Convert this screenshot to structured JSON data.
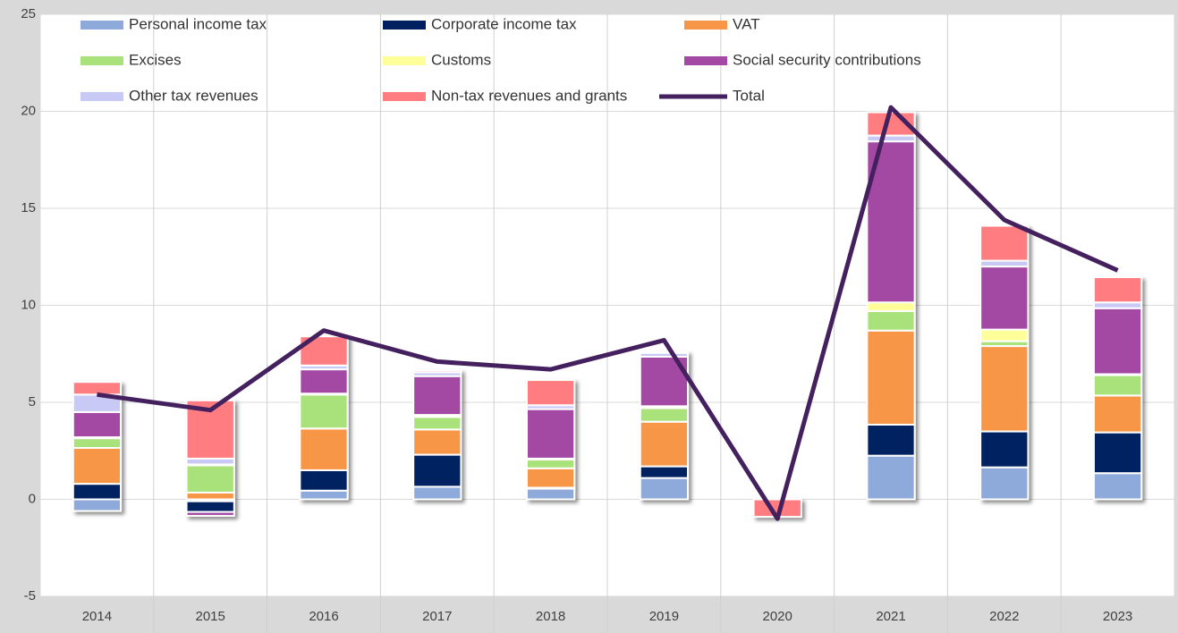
{
  "chart_data": {
    "type": "stacked_bar_line",
    "categories": [
      "2014",
      "2015",
      "2016",
      "2017",
      "2018",
      "2019",
      "2020",
      "2021",
      "2022",
      "2023"
    ],
    "series": [
      {
        "name": "Personal income tax",
        "color": "#8eaadb",
        "values": [
          -0.6,
          -0.1,
          0.45,
          0.65,
          0.55,
          1.1,
          0,
          2.25,
          1.65,
          1.35
        ]
      },
      {
        "name": "Corporate income tax",
        "color": "#002060",
        "values": [
          0.8,
          -0.55,
          1.05,
          1.65,
          0.05,
          0.6,
          0,
          1.6,
          1.85,
          2.1
        ]
      },
      {
        "name": "VAT",
        "color": "#f79646",
        "values": [
          1.85,
          0.35,
          2.15,
          1.3,
          1.0,
          2.3,
          0,
          4.85,
          4.4,
          1.9
        ]
      },
      {
        "name": "Excises",
        "color": "#a9e27a",
        "values": [
          0.5,
          1.4,
          1.75,
          0.65,
          0.45,
          0.7,
          0,
          1.0,
          0.25,
          1.05
        ]
      },
      {
        "name": "Customs",
        "color": "#ffff99",
        "values": [
          0.05,
          0.05,
          0.05,
          0.1,
          0.05,
          0.1,
          0,
          0.45,
          0.6,
          0.05
        ]
      },
      {
        "name": "Social security contributions",
        "color": "#a349a4",
        "values": [
          1.3,
          -0.2,
          1.25,
          2.0,
          2.55,
          2.55,
          0,
          8.3,
          3.25,
          3.4
        ]
      },
      {
        "name": "Other tax revenues",
        "color": "#c9c9f5",
        "values": [
          0.9,
          0.3,
          0.2,
          0.2,
          0.2,
          0.2,
          0,
          0.3,
          0.3,
          0.3
        ]
      },
      {
        "name": "Non-tax revenues and grants",
        "color": "#ff7c80",
        "values": [
          0.65,
          3.0,
          1.5,
          0.1,
          1.3,
          0.05,
          -0.9,
          1.2,
          1.8,
          1.3
        ]
      },
      {
        "name": "Total",
        "color": "#44215e",
        "line": true,
        "values": [
          5.4,
          4.6,
          8.7,
          7.1,
          6.7,
          8.2,
          -1.0,
          20.2,
          14.4,
          11.8
        ]
      }
    ],
    "ylim": [
      -5,
      25
    ],
    "yticks": [
      -5,
      0,
      5,
      10,
      15,
      20,
      25
    ],
    "grid": true
  }
}
